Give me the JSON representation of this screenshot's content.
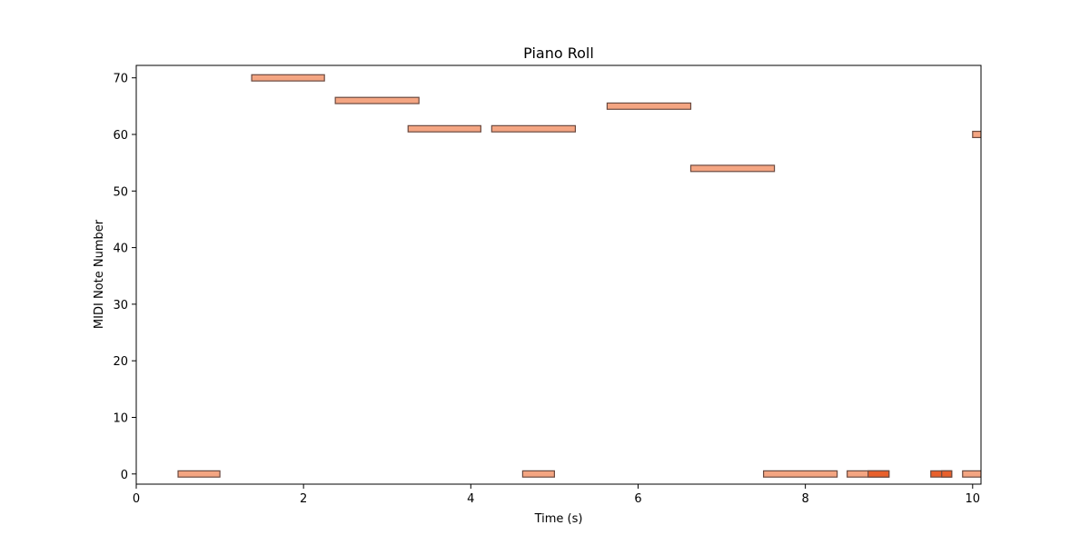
{
  "chart_data": {
    "type": "piano-roll",
    "title": "Piano Roll",
    "xlabel": "Time (s)",
    "ylabel": "MIDI Note Number",
    "xlim": [
      0,
      10.1
    ],
    "ylim": [
      -1.8,
      72.2
    ],
    "xticks": [
      0,
      2,
      4,
      6,
      8,
      10
    ],
    "yticks": [
      0,
      10,
      20,
      30,
      40,
      50,
      60,
      70
    ],
    "grid": false,
    "colors": {
      "note_fill": "#f4a582",
      "note_fill_strong": "#e8602c",
      "note_edge": "#6b4a40"
    },
    "notes": [
      {
        "start": 0.5,
        "end": 1.0,
        "pitch": 0
      },
      {
        "start": 1.38,
        "end": 2.25,
        "pitch": 70
      },
      {
        "start": 2.38,
        "end": 3.38,
        "pitch": 66
      },
      {
        "start": 3.25,
        "end": 4.12,
        "pitch": 61
      },
      {
        "start": 4.25,
        "end": 5.25,
        "pitch": 61
      },
      {
        "start": 4.62,
        "end": 5.0,
        "pitch": 0
      },
      {
        "start": 5.63,
        "end": 6.63,
        "pitch": 65
      },
      {
        "start": 6.63,
        "end": 7.63,
        "pitch": 54
      },
      {
        "start": 7.5,
        "end": 8.38,
        "pitch": 0
      },
      {
        "start": 8.5,
        "end": 9.0,
        "pitch": 0
      },
      {
        "start": 8.75,
        "end": 9.0,
        "pitch": 0
      },
      {
        "start": 9.5,
        "end": 9.75,
        "pitch": 0
      },
      {
        "start": 9.63,
        "end": 9.75,
        "pitch": 0
      },
      {
        "start": 9.88,
        "end": 10.2,
        "pitch": 0
      },
      {
        "start": 10.0,
        "end": 10.2,
        "pitch": 60
      }
    ]
  }
}
